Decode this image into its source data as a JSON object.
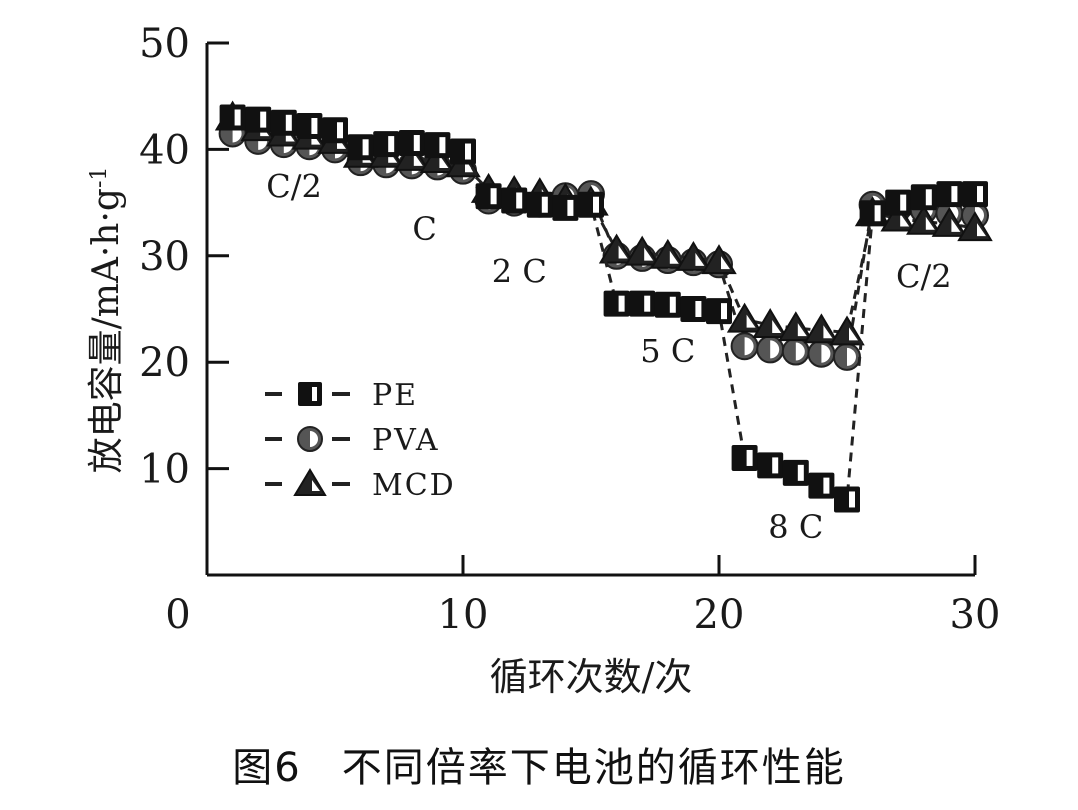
{
  "figure": {
    "caption_number": "图6",
    "caption_text": "不同倍率下电池的循环性能"
  },
  "chart_data": {
    "type": "line",
    "title": "不同倍率下电池的循环性能",
    "xlabel": "循环次数/次",
    "ylabel": "放电容量/mA·h·g⁻¹",
    "ylabel_parts": {
      "main": "放电容量/mA·h·g",
      "sup": "-1"
    },
    "xlim": [
      0,
      30
    ],
    "ylim": [
      0,
      50
    ],
    "xticks": [
      0,
      10,
      20,
      30
    ],
    "yticks": [
      10,
      20,
      30,
      40,
      50
    ],
    "grid": false,
    "legend_position": "lower-left",
    "x": [
      1,
      2,
      3,
      4,
      5,
      6,
      7,
      8,
      9,
      10,
      11,
      12,
      13,
      14,
      15,
      16,
      17,
      18,
      19,
      20,
      21,
      22,
      23,
      24,
      25,
      26,
      27,
      28,
      29,
      30
    ],
    "series": [
      {
        "name": "PE",
        "marker": "half-filled-square",
        "values": [
          43.0,
          42.8,
          42.5,
          42.2,
          41.8,
          40.2,
          40.5,
          40.6,
          40.4,
          39.8,
          35.6,
          35.2,
          34.8,
          34.5,
          34.8,
          25.5,
          25.5,
          25.4,
          25.0,
          24.8,
          11.0,
          10.3,
          9.6,
          8.4,
          7.1,
          34.0,
          35.0,
          35.5,
          35.8,
          35.8
        ]
      },
      {
        "name": "PVA",
        "marker": "half-filled-circle",
        "values": [
          41.5,
          40.8,
          40.5,
          40.3,
          40.0,
          38.8,
          38.6,
          38.5,
          38.4,
          38.0,
          35.2,
          35.0,
          34.9,
          35.6,
          35.8,
          30.0,
          29.8,
          29.6,
          29.4,
          29.2,
          21.5,
          21.2,
          21.0,
          20.8,
          20.5,
          34.8,
          34.5,
          34.3,
          34.0,
          33.8
        ]
      },
      {
        "name": "MCD",
        "marker": "half-filled-triangle",
        "values": [
          43.0,
          42.0,
          41.5,
          41.2,
          40.8,
          39.5,
          39.5,
          39.2,
          39.0,
          38.6,
          36.2,
          36.0,
          35.8,
          35.3,
          35.0,
          30.5,
          30.3,
          30.0,
          29.8,
          29.5,
          24.0,
          23.5,
          23.2,
          23.0,
          22.8,
          34.0,
          33.5,
          33.2,
          33.0,
          32.6
        ]
      }
    ],
    "annotations": [
      {
        "text": "C/2",
        "x": 3.4,
        "y": 35.5
      },
      {
        "text": "C",
        "x": 8.5,
        "y": 31.5
      },
      {
        "text": "2 C",
        "x": 12.2,
        "y": 27.5
      },
      {
        "text": "5 C",
        "x": 18.0,
        "y": 20.0
      },
      {
        "text": "8 C",
        "x": 23.0,
        "y": 3.5
      },
      {
        "text": "C/2",
        "x": 28.0,
        "y": 27.0
      }
    ]
  }
}
